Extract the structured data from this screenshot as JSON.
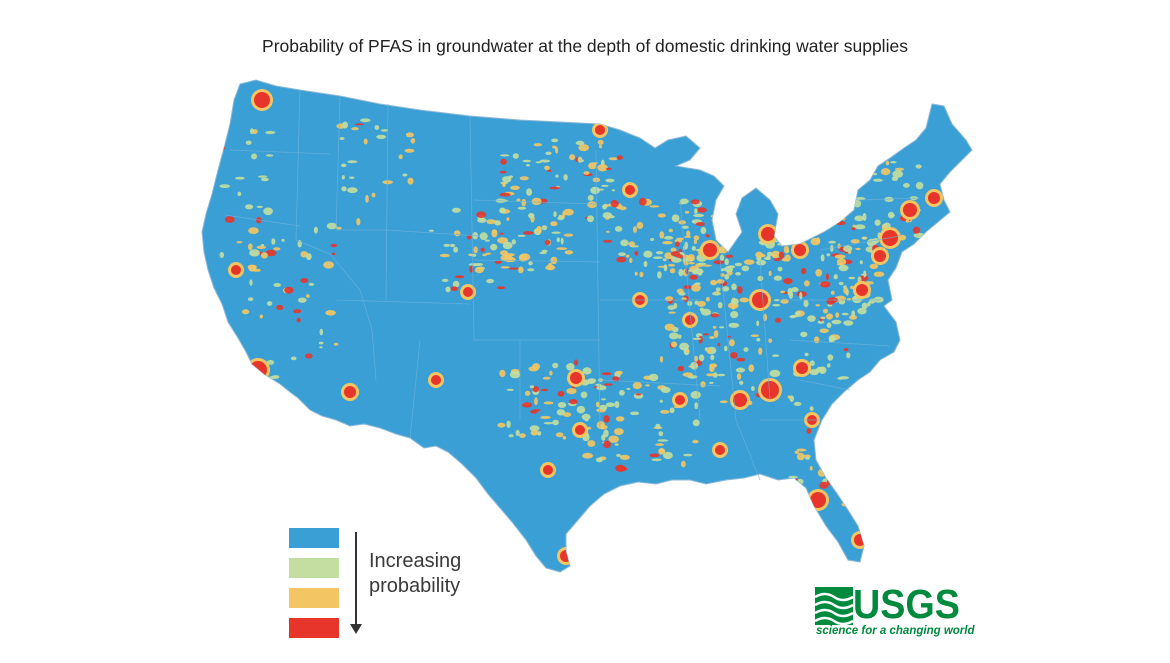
{
  "title": "Probability of PFAS in groundwater at the depth of domestic drinking water supplies",
  "legend": {
    "label_line1": "Increasing",
    "label_line2": "probability",
    "classes": [
      {
        "color": "#3a9fd5"
      },
      {
        "color": "#c3dea0"
      },
      {
        "color": "#f4c663"
      },
      {
        "color": "#e8352b"
      }
    ]
  },
  "logo": {
    "text": "USGS",
    "tagline": "science for a changing world",
    "color": "#008a3e"
  },
  "colors": {
    "land": "#3a9fd5",
    "low": "#c3dea0",
    "medium": "#f4c663",
    "high": "#e8352b"
  }
}
